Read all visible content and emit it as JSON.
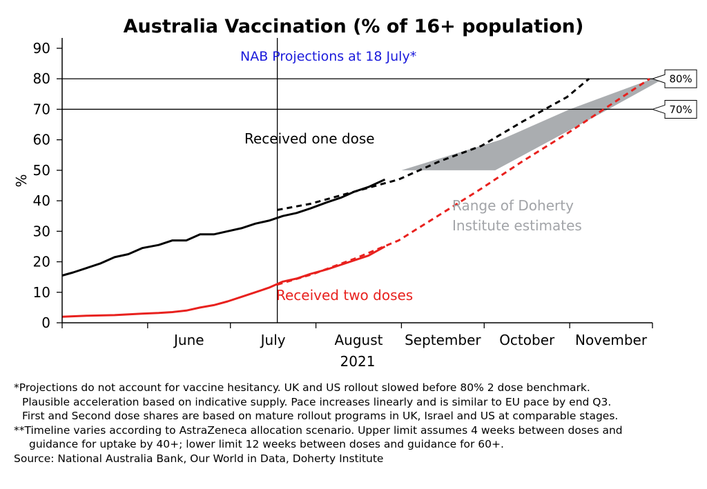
{
  "chart_data": {
    "type": "line",
    "title": "Australia Vaccination (% of 16+ population)",
    "xlabel": "2021",
    "ylabel": "%",
    "ylim": [
      0,
      90
    ],
    "yticks": [
      0,
      10,
      20,
      30,
      40,
      50,
      60,
      70,
      80,
      90
    ],
    "months": [
      "June",
      "July",
      "August",
      "September",
      "October",
      "November"
    ],
    "grid": false,
    "reference_lines": [
      {
        "y": 80,
        "label": "80%"
      },
      {
        "y": 70,
        "label": "70%"
      }
    ],
    "vertical_marker": {
      "date": "2021-07-18",
      "label": "NAB Projections at 18 July*"
    },
    "series": [
      {
        "name": "Received one dose",
        "color": "#000000",
        "style": "solid",
        "points": [
          [
            "2021-05-01",
            15.5
          ],
          [
            "2021-05-05",
            16.5
          ],
          [
            "2021-05-10",
            18
          ],
          [
            "2021-05-15",
            19.5
          ],
          [
            "2021-05-20",
            21.5
          ],
          [
            "2021-05-25",
            22.5
          ],
          [
            "2021-05-30",
            24.5
          ],
          [
            "2021-06-05",
            25.5
          ],
          [
            "2021-06-10",
            27
          ],
          [
            "2021-06-15",
            27
          ],
          [
            "2021-06-20",
            29
          ],
          [
            "2021-06-25",
            29
          ],
          [
            "2021-06-30",
            30
          ],
          [
            "2021-07-05",
            31
          ],
          [
            "2021-07-10",
            32.5
          ],
          [
            "2021-07-15",
            33.5
          ],
          [
            "2021-07-20",
            35
          ],
          [
            "2021-07-25",
            36
          ],
          [
            "2021-07-30",
            37.5
          ],
          [
            "2021-08-05",
            39.5
          ],
          [
            "2021-08-10",
            41
          ],
          [
            "2021-08-15",
            43
          ],
          [
            "2021-08-20",
            44.5
          ],
          [
            "2021-08-26",
            47
          ]
        ]
      },
      {
        "name": "Received two doses",
        "color": "#e8211e",
        "style": "solid",
        "points": [
          [
            "2021-05-01",
            2
          ],
          [
            "2021-05-10",
            2.3
          ],
          [
            "2021-05-20",
            2.5
          ],
          [
            "2021-05-30",
            3
          ],
          [
            "2021-06-05",
            3.2
          ],
          [
            "2021-06-10",
            3.5
          ],
          [
            "2021-06-15",
            4
          ],
          [
            "2021-06-20",
            5
          ],
          [
            "2021-06-25",
            5.8
          ],
          [
            "2021-06-30",
            7
          ],
          [
            "2021-07-05",
            8.5
          ],
          [
            "2021-07-10",
            10
          ],
          [
            "2021-07-15",
            11.5
          ],
          [
            "2021-07-20",
            13.5
          ],
          [
            "2021-07-25",
            14.5
          ],
          [
            "2021-07-30",
            16
          ],
          [
            "2021-08-05",
            17.5
          ],
          [
            "2021-08-10",
            19
          ],
          [
            "2021-08-15",
            20.5
          ],
          [
            "2021-08-20",
            22
          ],
          [
            "2021-08-26",
            25
          ]
        ]
      },
      {
        "name": "Received one dose",
        "color": "#000000",
        "style": "dashed",
        "points": [
          [
            "2021-07-18",
            37
          ],
          [
            "2021-07-30",
            39
          ],
          [
            "2021-08-15",
            43
          ],
          [
            "2021-08-31",
            47
          ],
          [
            "2021-09-15",
            53
          ],
          [
            "2021-09-30",
            58
          ],
          [
            "2021-10-15",
            66
          ],
          [
            "2021-10-31",
            74
          ],
          [
            "2021-11-08",
            80
          ]
        ]
      },
      {
        "name": "Received two doses",
        "color": "#e8211e",
        "style": "dashed",
        "points": [
          [
            "2021-07-18",
            12.5
          ],
          [
            "2021-07-31",
            16
          ],
          [
            "2021-08-15",
            21
          ],
          [
            "2021-08-31",
            27
          ],
          [
            "2021-09-15",
            35.5
          ],
          [
            "2021-09-30",
            44
          ],
          [
            "2021-10-15",
            53
          ],
          [
            "2021-10-31",
            62
          ],
          [
            "2021-11-15",
            71
          ],
          [
            "2021-11-30",
            80
          ]
        ]
      }
    ],
    "bands": [
      {
        "name": "Range of Doherty Institute estimates",
        "color": "#aaadb0",
        "upper": [
          [
            "2021-09-01",
            50
          ],
          [
            "2021-10-07",
            60
          ],
          [
            "2021-11-01",
            70
          ],
          [
            "2021-12-01",
            80
          ]
        ],
        "lower": [
          [
            "2021-10-05",
            50
          ],
          [
            "2021-11-15",
            70
          ],
          [
            "2021-12-05",
            80
          ]
        ]
      }
    ],
    "annotations": [
      {
        "text": "Received one dose",
        "color": "#000000"
      },
      {
        "text": "Received two doses",
        "color": "#e8211e"
      },
      {
        "text": "Range of Doherty",
        "color": "#a2a4a8"
      },
      {
        "text": "Institute estimates",
        "color": "#a2a4a8"
      }
    ]
  },
  "footnotes": [
    "*Projections do not account for vaccine hesitancy. UK and US rollout slowed before 80% 2 dose benchmark.",
    "Plausible acceleration based on indicative supply. Pace increases linearly and is similar to EU pace by end Q3.",
    "First and Second dose shares are based on mature rollout programs in UK, Israel and US at comparable stages.",
    "**Timeline varies according to AstraZeneca allocation scenario. Upper limit assumes 4 weeks between doses and",
    "guidance for uptake by 40+; lower limit 12 weeks between doses and guidance for 60+.",
    "Source: National Australia Bank, Our World in Data, Doherty Institute"
  ]
}
